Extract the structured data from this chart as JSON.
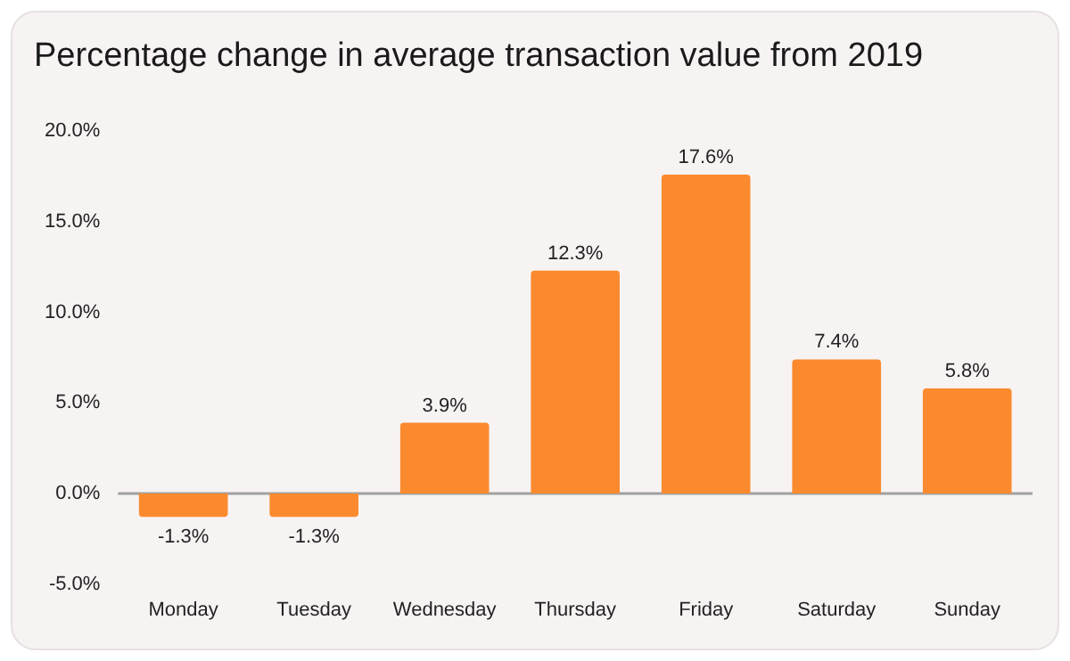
{
  "chart_data": {
    "type": "bar",
    "title": "Percentage change in average transaction value from 2019",
    "categories": [
      "Monday",
      "Tuesday",
      "Wednesday",
      "Thursday",
      "Friday",
      "Saturday",
      "Sunday"
    ],
    "values": [
      -1.3,
      -1.3,
      3.9,
      12.3,
      17.6,
      7.4,
      5.8
    ],
    "value_labels": [
      "-1.3%",
      "-1.3%",
      "3.9%",
      "12.3%",
      "17.6%",
      "7.4%",
      "5.8%"
    ],
    "color": "#fb8a2e",
    "ylim": [
      -5,
      20
    ],
    "yticks": [
      {
        "value": -5,
        "label": "-5.0%"
      },
      {
        "value": 0,
        "label": "0.0%"
      },
      {
        "value": 5,
        "label": "5.0%"
      },
      {
        "value": 10,
        "label": "10.0%"
      },
      {
        "value": 15,
        "label": "15.0%"
      },
      {
        "value": 20,
        "label": "20.0%"
      }
    ],
    "grid": false,
    "legend": false,
    "ref_lines": [
      {
        "axis": "y",
        "value": 0,
        "color": "#a0a0a0"
      }
    ]
  }
}
